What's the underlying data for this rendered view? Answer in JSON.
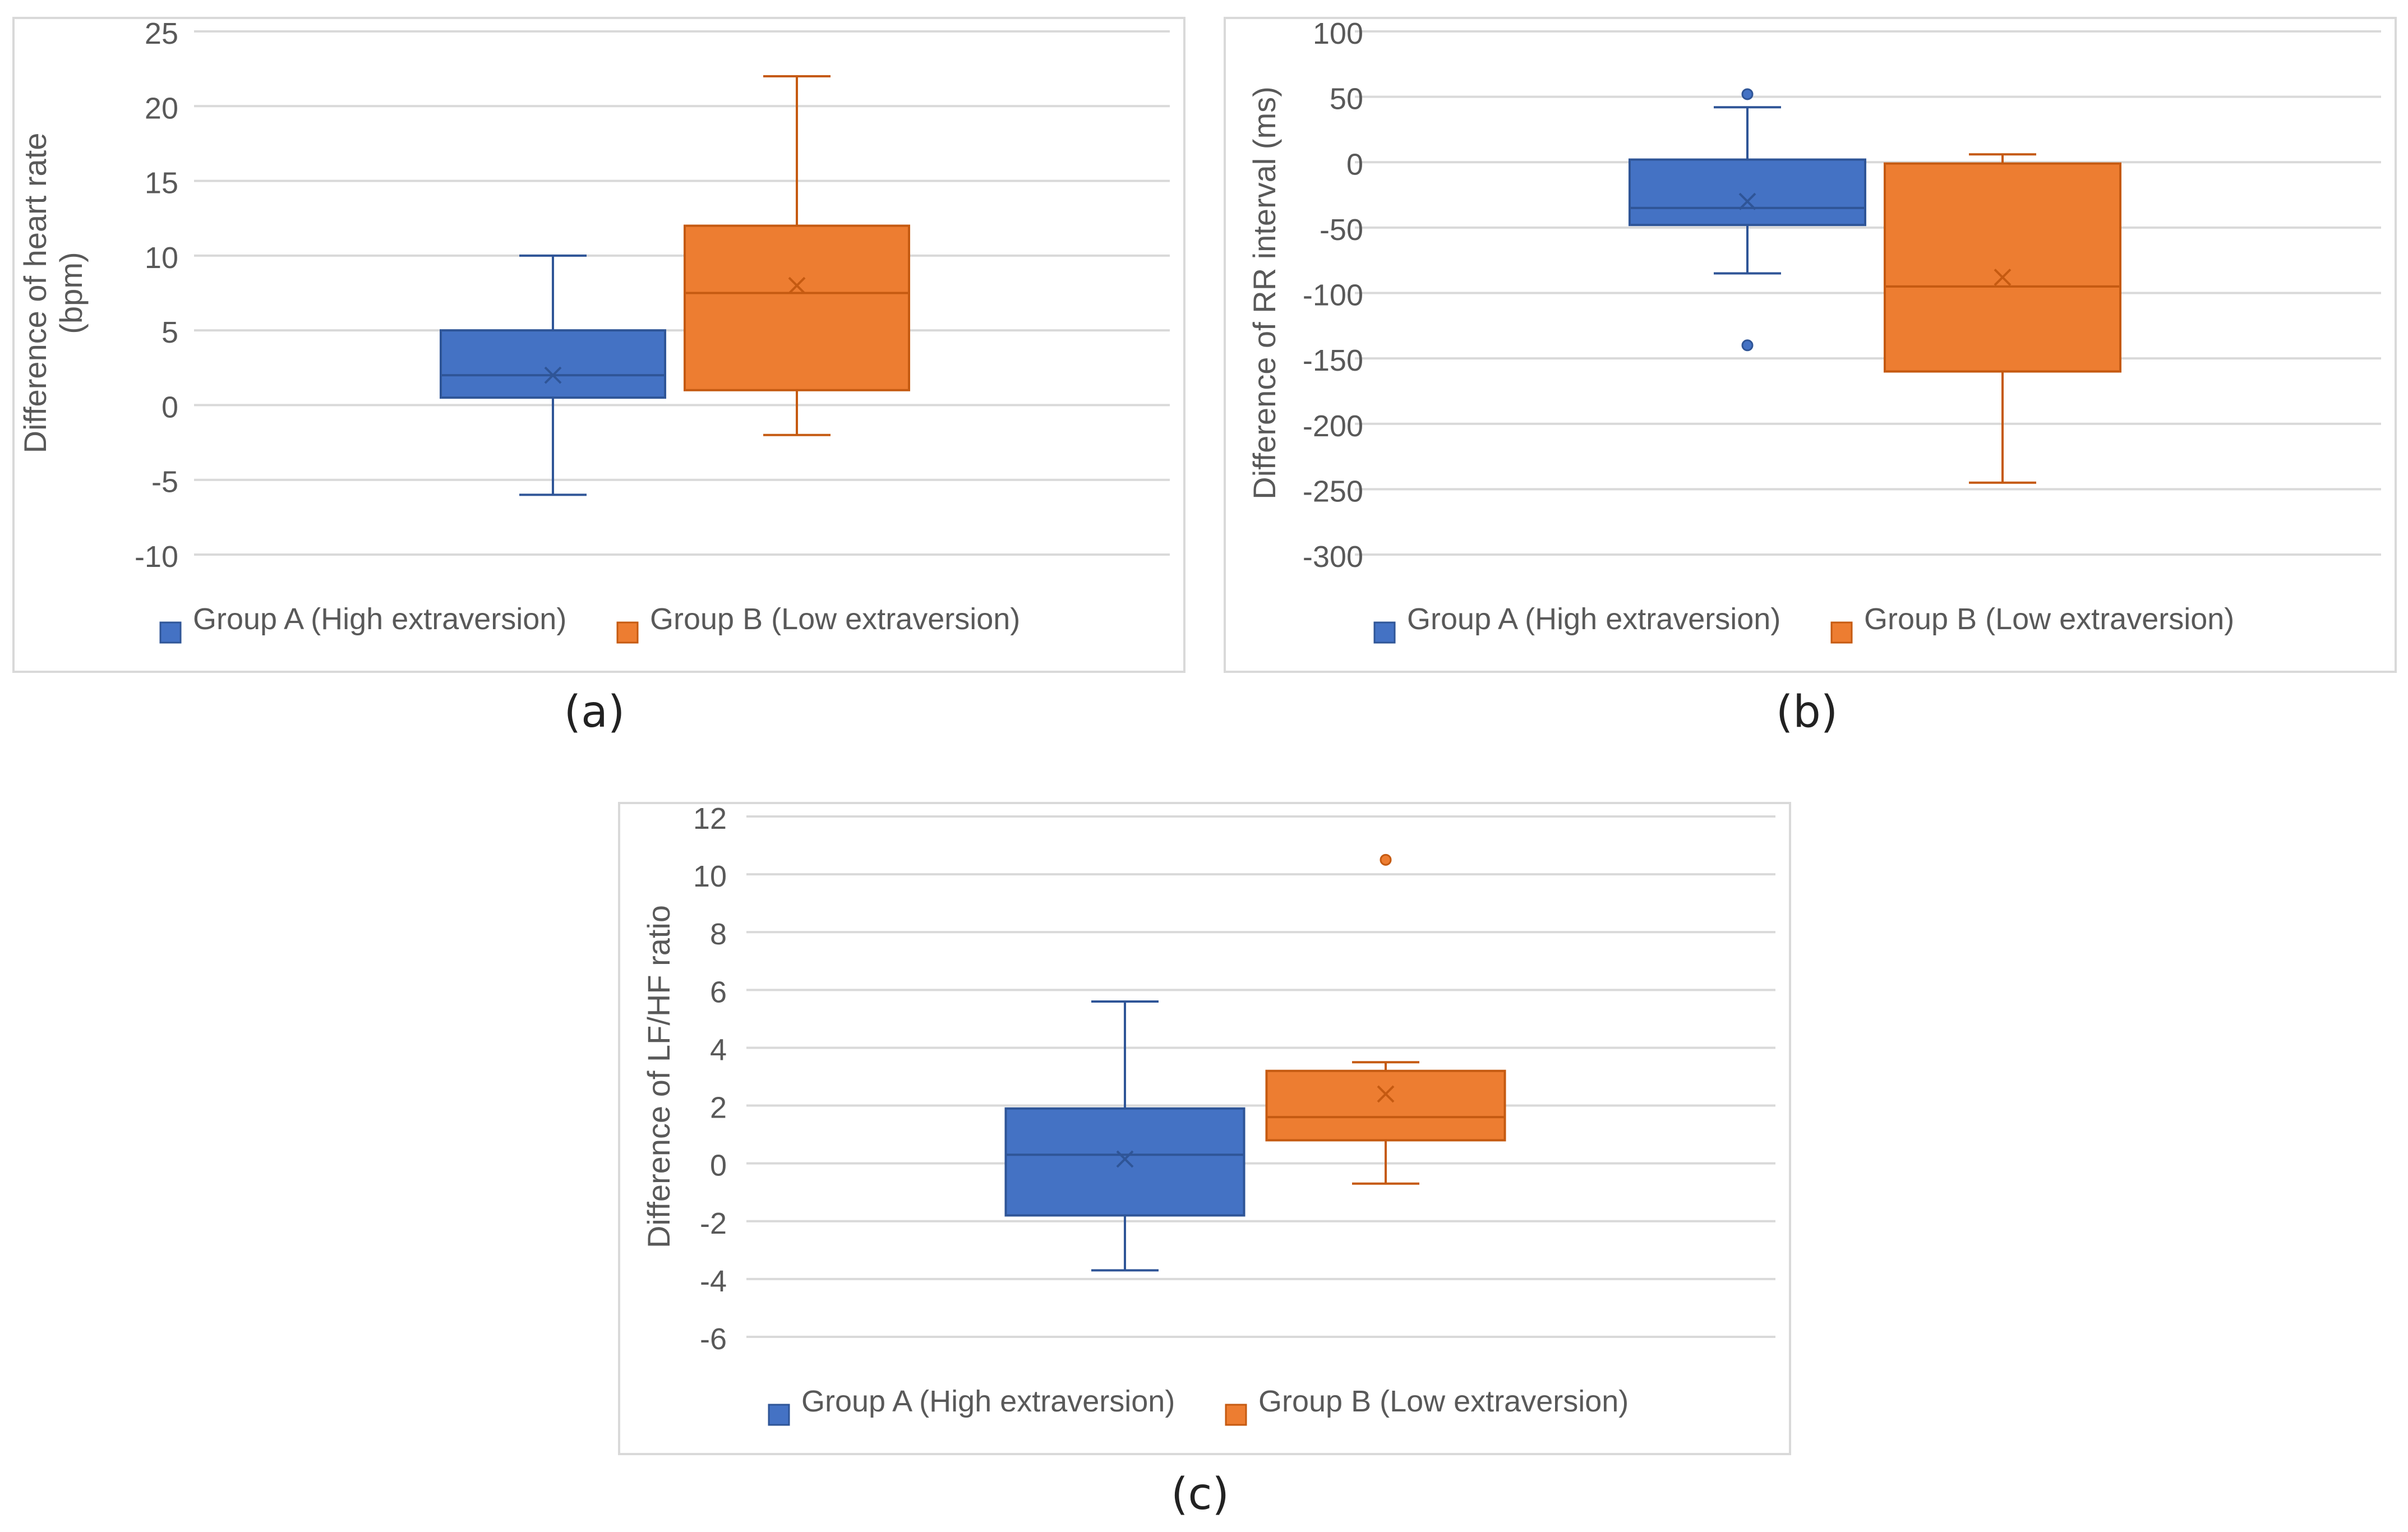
{
  "chart_data": [
    {
      "type": "boxplot",
      "caption": "(a)",
      "ylabel_lines": [
        "Difference of heart rate",
        "(bpm)"
      ],
      "ylim": [
        -10,
        25
      ],
      "yticks": [
        -10,
        -5,
        0,
        5,
        10,
        15,
        20,
        25
      ],
      "gridlines": true,
      "legend_position": "bottom",
      "series": [
        {
          "name": "Group A (High extraversion)",
          "color": "#4472C4",
          "dark": "#2F5597",
          "min": -6,
          "q1": 0.5,
          "median": 2,
          "mean": 2,
          "q3": 5,
          "max": 10,
          "outliers": []
        },
        {
          "name": "Group B (Low extraversion)",
          "color": "#ED7D31",
          "dark": "#C55A11",
          "min": -2,
          "q1": 1,
          "median": 7.5,
          "mean": 8,
          "q3": 12,
          "max": 22,
          "outliers": []
        }
      ]
    },
    {
      "type": "boxplot",
      "caption": "(b)",
      "ylabel_lines": [
        "Difference of RR interval (ms)"
      ],
      "ylim": [
        -300,
        100
      ],
      "yticks": [
        -300,
        -250,
        -200,
        -150,
        -100,
        -50,
        0,
        50,
        100
      ],
      "gridlines": true,
      "legend_position": "bottom",
      "series": [
        {
          "name": "Group A (High extraversion)",
          "color": "#4472C4",
          "dark": "#2F5597",
          "min": -85,
          "q1": -48,
          "median": -35,
          "mean": -30,
          "q3": 2,
          "max": 42,
          "outliers": [
            52,
            -140
          ]
        },
        {
          "name": "Group B (Low extraversion)",
          "color": "#ED7D31",
          "dark": "#C55A11",
          "min": -245,
          "q1": -160,
          "median": -95,
          "mean": -88,
          "q3": -1,
          "max": 6,
          "outliers": []
        }
      ]
    },
    {
      "type": "boxplot",
      "caption": "(c)",
      "ylabel_lines": [
        "Difference of LF/HF ratio"
      ],
      "ylim": [
        -6,
        12
      ],
      "yticks": [
        -6,
        -4,
        -2,
        0,
        2,
        4,
        6,
        8,
        10,
        12
      ],
      "gridlines": true,
      "legend_position": "bottom",
      "series": [
        {
          "name": "Group A (High extraversion)",
          "color": "#4472C4",
          "dark": "#2F5597",
          "min": -3.7,
          "q1": -1.8,
          "median": 0.3,
          "mean": 0.15,
          "q3": 1.9,
          "max": 5.6,
          "outliers": []
        },
        {
          "name": "Group B (Low extraversion)",
          "color": "#ED7D31",
          "dark": "#C55A11",
          "min": -0.7,
          "q1": 0.8,
          "median": 1.6,
          "mean": 2.4,
          "q3": 3.2,
          "max": 3.5,
          "outliers": [
            10.5
          ]
        }
      ]
    }
  ]
}
